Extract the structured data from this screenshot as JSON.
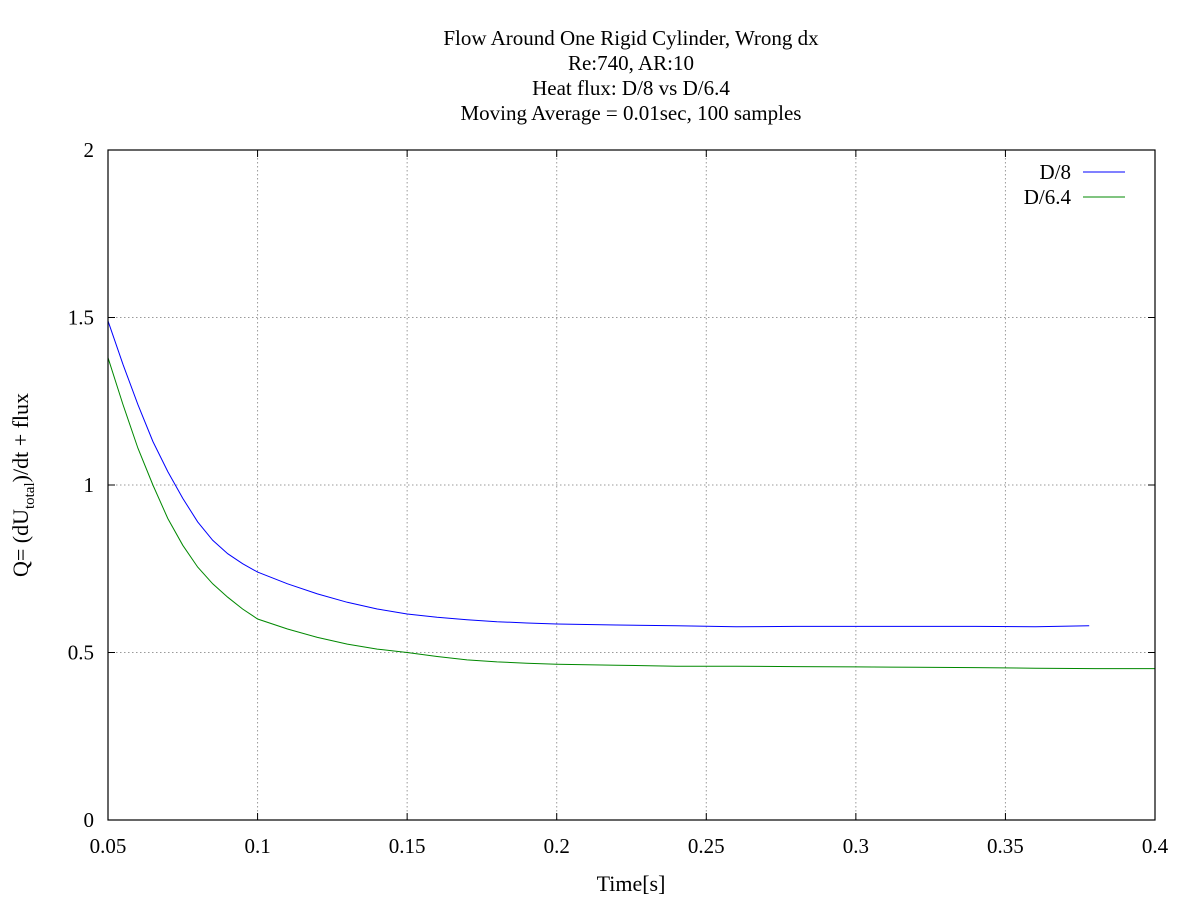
{
  "chart_data": {
    "type": "line",
    "title": [
      "Flow Around One Rigid Cylinder, Wrong dx",
      "Re:740, AR:10",
      "Heat flux: D/8 vs D/6.4",
      "Moving Average = 0.01sec, 100 samples"
    ],
    "xlabel": "Time[s]",
    "ylabel": {
      "prefix": "Q= (dU",
      "subscript": "total",
      "suffix": ")/dt + flux"
    },
    "xlim": [
      0.05,
      0.4
    ],
    "ylim": [
      0,
      2
    ],
    "x_ticks": [
      "0.05",
      "0.1",
      "0.15",
      "0.2",
      "0.25",
      "0.3",
      "0.35",
      "0.4"
    ],
    "y_ticks": [
      "0",
      "0.5",
      "1",
      "1.5",
      "2"
    ],
    "grid": true,
    "legend_position": "top-right",
    "series": [
      {
        "name": "D/8",
        "color": "#0000ff",
        "x": [
          0.05,
          0.055,
          0.06,
          0.065,
          0.07,
          0.075,
          0.08,
          0.085,
          0.09,
          0.095,
          0.1,
          0.11,
          0.12,
          0.13,
          0.14,
          0.15,
          0.16,
          0.17,
          0.18,
          0.19,
          0.2,
          0.22,
          0.24,
          0.26,
          0.28,
          0.3,
          0.32,
          0.34,
          0.36,
          0.378
        ],
        "y": [
          1.49,
          1.36,
          1.24,
          1.13,
          1.04,
          0.96,
          0.89,
          0.835,
          0.795,
          0.765,
          0.74,
          0.705,
          0.675,
          0.65,
          0.63,
          0.615,
          0.605,
          0.598,
          0.592,
          0.588,
          0.585,
          0.582,
          0.58,
          0.577,
          0.578,
          0.578,
          0.578,
          0.578,
          0.577,
          0.58
        ]
      },
      {
        "name": "D/6.4",
        "color": "#008800",
        "x": [
          0.05,
          0.055,
          0.06,
          0.065,
          0.07,
          0.075,
          0.08,
          0.085,
          0.09,
          0.095,
          0.1,
          0.11,
          0.12,
          0.13,
          0.14,
          0.15,
          0.16,
          0.17,
          0.18,
          0.19,
          0.2,
          0.22,
          0.24,
          0.26,
          0.28,
          0.3,
          0.32,
          0.34,
          0.36,
          0.38,
          0.4
        ],
        "y": [
          1.38,
          1.24,
          1.11,
          1.0,
          0.9,
          0.82,
          0.755,
          0.705,
          0.665,
          0.63,
          0.6,
          0.57,
          0.545,
          0.525,
          0.51,
          0.5,
          0.488,
          0.478,
          0.472,
          0.468,
          0.465,
          0.462,
          0.459,
          0.459,
          0.458,
          0.457,
          0.456,
          0.455,
          0.453,
          0.452,
          0.452
        ]
      }
    ]
  }
}
